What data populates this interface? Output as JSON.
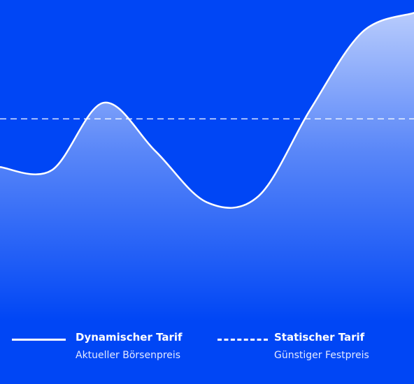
{
  "colors": {
    "background": "#0046f5",
    "line": "#ffffff",
    "fill_top": "#ffffff",
    "reference_line": "#ffffff"
  },
  "chart_data": {
    "type": "area",
    "title": "",
    "xlabel": "",
    "ylabel": "",
    "grid": false,
    "x": [
      0,
      1,
      2,
      3,
      4,
      5,
      6,
      7,
      8
    ],
    "ylim": [
      0,
      100
    ],
    "series": [
      {
        "name": "Dynamischer Tarif",
        "subtitle": "Aktueller Börsenpreis",
        "style": "solid",
        "values": [
          48,
          47,
          68,
          53,
          37,
          39,
          66,
          90,
          96
        ]
      },
      {
        "name": "Statischer Tarif",
        "subtitle": "Günstiger Festpreis",
        "style": "dashed",
        "values": [
          63,
          63,
          63,
          63,
          63,
          63,
          63,
          63,
          63
        ]
      }
    ],
    "legend_position": "bottom"
  }
}
